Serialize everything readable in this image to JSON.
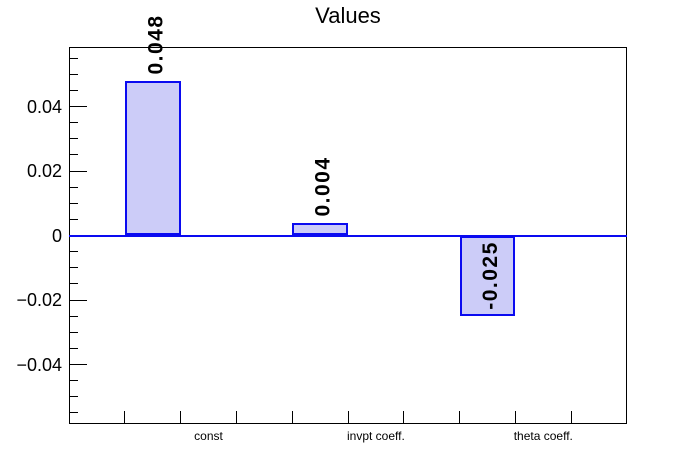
{
  "chart_data": {
    "type": "bar",
    "title": "Values",
    "categories": [
      "const",
      "invpt coeff.",
      "theta coeff."
    ],
    "values": [
      0.048,
      0.004,
      -0.025
    ],
    "value_labels": [
      "0.048",
      "0.004",
      "-0.025"
    ],
    "y_ticks": [
      {
        "v": 0.04,
        "label": "0.04"
      },
      {
        "v": 0.02,
        "label": "0.02"
      },
      {
        "v": 0,
        "label": "0"
      },
      {
        "v": -0.02,
        "label": "−0.02"
      },
      {
        "v": -0.04,
        "label": "−0.04"
      }
    ],
    "ylim": [
      -0.0585,
      0.0585
    ],
    "minor_tick_step": 0.005,
    "x_slot_count": 10,
    "bar_slots": [
      1,
      4,
      7
    ],
    "label_slots": [
      2,
      5,
      8
    ],
    "grid": false,
    "legend": false
  },
  "colors": {
    "bar_fill": "#ccccf8",
    "bar_border": "#0a0af0",
    "zero_line": "#0a0af0",
    "axis": "#000000",
    "text": "#000000"
  }
}
